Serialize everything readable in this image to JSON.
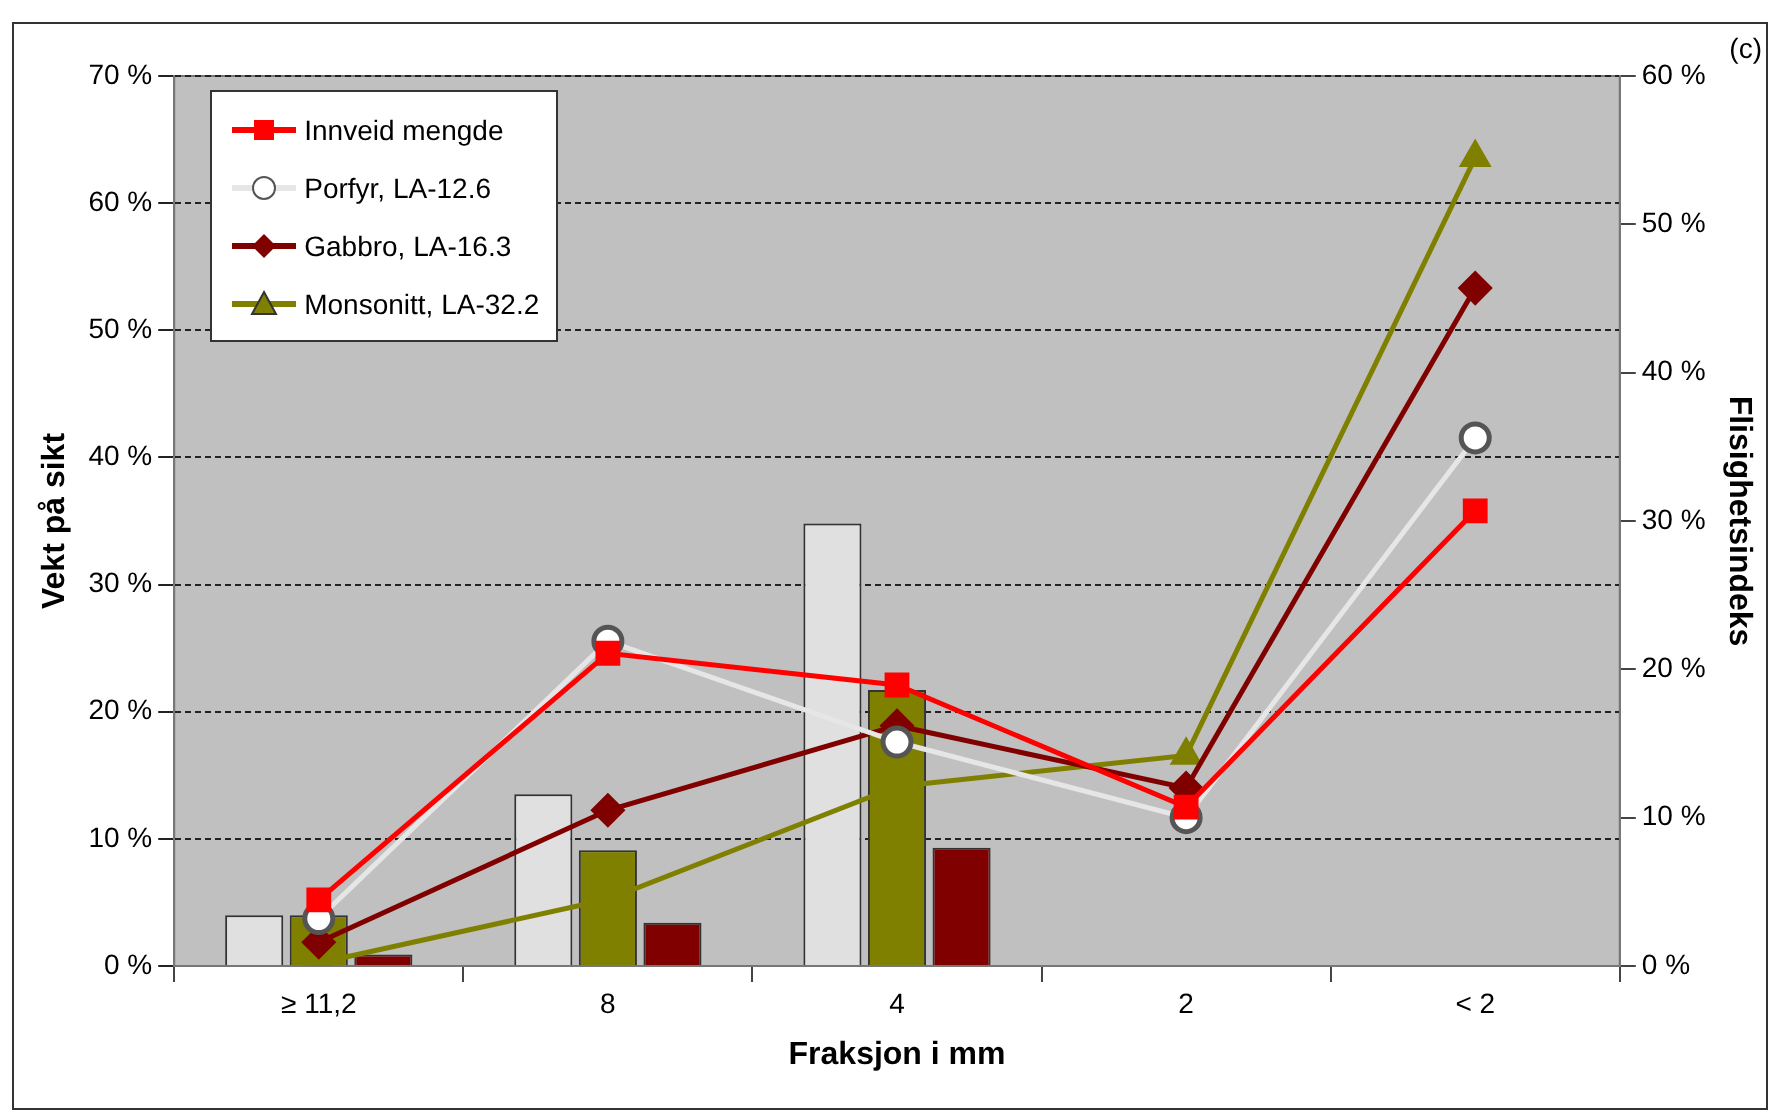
{
  "chart_data": {
    "type": "bar",
    "xlabel": "Fraksjon i mm",
    "ylabel": "Vekt på sikt",
    "y2label": "Flisighetsindeks",
    "annotations": [
      "(c)"
    ],
    "categories": [
      "≥ 11,2",
      "8",
      "4",
      "2",
      "< 2"
    ],
    "series": [
      {
        "color": "#e0e0e0",
        "values": [
          4.0,
          13.5,
          34.8,
          null,
          null
        ]
      },
      {
        "color": "#808000",
        "values": [
          4.0,
          9.1,
          21.7,
          null,
          null
        ]
      },
      {
        "color": "#800000",
        "values": [
          0.9,
          3.4,
          9.3,
          null,
          null
        ]
      },
      {
        "type": "line",
        "name": "Innveid mengde",
        "color": "#ff0000",
        "marker": "square",
        "values": [
          5.2,
          24.6,
          22.1,
          12.5,
          35.8
        ]
      },
      {
        "type": "line",
        "name": "Porfyr, LA-12.6",
        "color": "#e6e6e6",
        "marker": "circle",
        "axis": "y2",
        "values": [
          3.2,
          21.9,
          15.1,
          10.0,
          35.6
        ]
      },
      {
        "type": "line",
        "name": "Gabbro, LA-16.3",
        "color": "#800000",
        "marker": "diamond",
        "axis": "y2",
        "values": [
          1.6,
          10.5,
          16.2,
          12.0,
          45.7
        ]
      },
      {
        "type": "line",
        "name": "Monsonitt, LA-32.2",
        "color": "#808000",
        "marker": "triangle",
        "axis": "y2",
        "values": [
          0.2,
          4.5,
          12.1,
          14.2,
          54.5
        ]
      }
    ],
    "ylim": [
      0,
      70
    ],
    "yticks": [
      {
        "value": 0,
        "label": "0 %"
      },
      {
        "value": 10,
        "label": "10 %"
      },
      {
        "value": 20,
        "label": "20 %"
      },
      {
        "value": 30,
        "label": "30 %"
      },
      {
        "value": 40,
        "label": "40 %"
      },
      {
        "value": 50,
        "label": "50 %"
      },
      {
        "value": 60,
        "label": "60 %"
      },
      {
        "value": 70,
        "label": "70 %"
      }
    ],
    "y2lim": [
      0,
      60
    ],
    "y2ticks": [
      {
        "value": 0,
        "label": "0 %"
      },
      {
        "value": 10,
        "label": "10 %"
      },
      {
        "value": 20,
        "label": "20 %"
      },
      {
        "value": 30,
        "label": "30 %"
      },
      {
        "value": 40,
        "label": "40 %"
      },
      {
        "value": 50,
        "label": "50 %"
      },
      {
        "value": 60,
        "label": "60 %"
      }
    ],
    "grid": "y",
    "legend": "top left"
  }
}
